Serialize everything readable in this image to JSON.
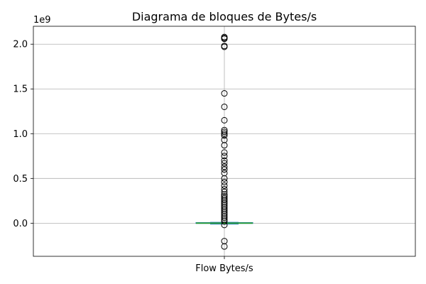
{
  "chart_data": {
    "type": "box",
    "title": "Diagrama de bloques de Bytes/s",
    "xlabel": "",
    "ylabel": "",
    "y_scale_label": "1e9",
    "categories": [
      "Flow Bytes/s"
    ],
    "ylim": [
      -0.37,
      2.2
    ],
    "yticks": [
      0.0,
      0.5,
      1.0,
      1.5,
      2.0
    ],
    "ytick_labels": [
      "0.0",
      "0.5",
      "1.0",
      "1.5",
      "2.0"
    ],
    "grid": true,
    "colors": {
      "box": "#1f77b4",
      "median": "#2ca02c",
      "whisker": "#1f77b4",
      "flier_edge": "#000000"
    },
    "box": {
      "min": -0.01,
      "q1": 0.0,
      "median": 0.0,
      "q3": 0.002,
      "max": 0.01
    },
    "fliers": [
      2.08,
      2.07,
      2.06,
      1.98,
      1.97,
      1.45,
      1.3,
      1.15,
      1.04,
      1.02,
      1.0,
      0.98,
      0.93,
      0.87,
      0.79,
      0.75,
      0.7,
      0.67,
      0.63,
      0.6,
      0.56,
      0.5,
      0.46,
      0.42,
      0.38,
      0.35,
      0.32,
      0.3,
      0.28,
      0.26,
      0.24,
      0.22,
      0.2,
      0.18,
      0.16,
      0.14,
      0.12,
      0.1,
      0.08,
      0.06,
      0.04,
      0.02,
      -0.02,
      -0.2,
      -0.26
    ]
  }
}
